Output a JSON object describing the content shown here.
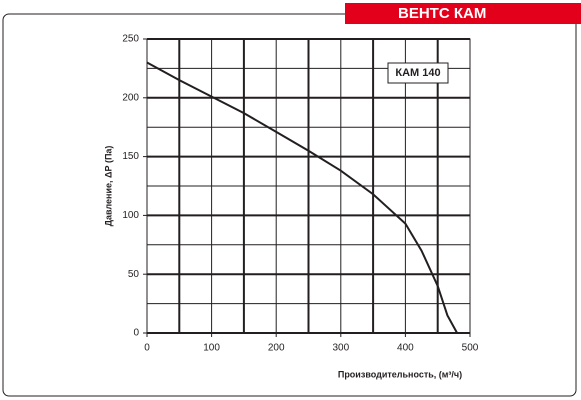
{
  "brand": "ВЕНТС КАМ",
  "chart_data": {
    "type": "line",
    "xlabel": "Производительность, (м³/ч)",
    "ylabel": "Давление, ΔР (Па)",
    "annotation": "КАМ 140",
    "x": [
      0,
      50,
      100,
      150,
      200,
      250,
      300,
      350,
      400,
      425,
      450,
      465,
      480
    ],
    "series": [
      {
        "name": "КАМ 140",
        "color": "#231f20",
        "values": [
          230,
          215,
          201,
          187,
          171,
          155,
          138,
          118,
          93,
          70,
          40,
          15,
          0
        ]
      }
    ],
    "xlim": [
      0,
      500
    ],
    "ylim": [
      0,
      250
    ],
    "xticks": [
      0,
      100,
      200,
      300,
      400,
      500
    ],
    "yticks": [
      0,
      50,
      100,
      150,
      200,
      250
    ],
    "xminorticks": [
      50,
      150,
      250,
      350,
      450
    ],
    "yminorticks": [
      25,
      75,
      125,
      175,
      225
    ],
    "grid": true
  }
}
